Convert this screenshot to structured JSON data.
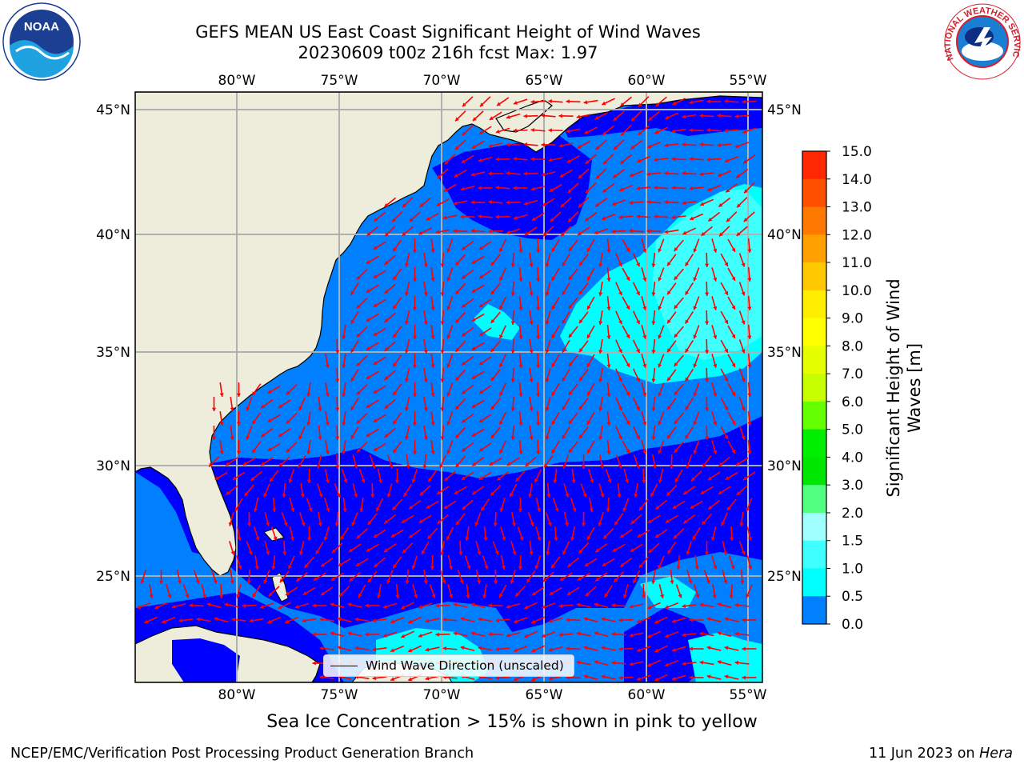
{
  "title": {
    "line1": "GEFS MEAN US East Coast Significant Height of Wind Waves",
    "line2": "20230609 t00z 216h fcst   Max: 1.97"
  },
  "logos": {
    "left": {
      "name": "noaa-logo",
      "text": "NOAA"
    },
    "right": {
      "name": "nws-logo",
      "text": "NATIONAL WEATHER SERVICE"
    }
  },
  "map": {
    "lon_labels": [
      "80°W",
      "75°W",
      "70°W",
      "65°W",
      "60°W",
      "55°W"
    ],
    "lat_labels": [
      "45°N",
      "40°N",
      "35°N",
      "30°N",
      "25°N"
    ],
    "legend_text": "Wind Wave Direction (unscaled)",
    "colors": {
      "land": "#eeecdb",
      "band_0_0_5": "#0000ff",
      "band_0_5_1_0": "#0080ff",
      "band_1_0_1_5": "#00ffff",
      "band_1_5_2_0": "#40ffff",
      "arrows": "#ff0000",
      "grid": "#b0b0b0"
    }
  },
  "colorbar": {
    "label": "Significant Height of Wind Waves [m]",
    "label_line1": "Significant Height of Wind",
    "label_line2": "Waves [m]",
    "ticks": [
      "15.0",
      "14.0",
      "13.0",
      "12.0",
      "11.0",
      "10.0",
      "9.0",
      "8.0",
      "7.0",
      "6.0",
      "5.0",
      "4.0",
      "3.0",
      "2.0",
      "1.5",
      "1.0",
      "0.5",
      "0.0"
    ],
    "colors": [
      "#ff0000",
      "#ff2800",
      "#ff5000",
      "#ff7800",
      "#ffa000",
      "#ffc800",
      "#ffee00",
      "#ffff00",
      "#e6ff00",
      "#c8ff00",
      "#64ff00",
      "#00ee00",
      "#00e600",
      "#50ff80",
      "#a0ffff",
      "#40ffff",
      "#00ffff",
      "#0080ff",
      "#0000ff"
    ]
  },
  "note": "Sea Ice Concentration > 15% is shown in pink to yellow",
  "footer": {
    "left": "NCEP/EMC/Verification Post Processing Product Generation Branch",
    "right_date": "11 Jun 2023 on ",
    "right_host": "Hera"
  }
}
